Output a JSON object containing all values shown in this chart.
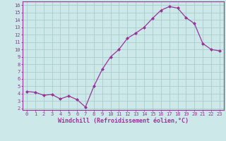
{
  "x": [
    0,
    1,
    2,
    3,
    4,
    5,
    6,
    7,
    8,
    9,
    10,
    11,
    12,
    13,
    14,
    15,
    16,
    17,
    18,
    19,
    20,
    21,
    22,
    23
  ],
  "y": [
    4.3,
    4.2,
    3.8,
    3.9,
    3.3,
    3.7,
    3.2,
    2.2,
    5.0,
    7.3,
    9.0,
    10.0,
    11.5,
    12.2,
    13.0,
    14.2,
    15.3,
    15.8,
    15.6,
    14.3,
    13.5,
    10.8,
    10.0,
    9.8
  ],
  "line_color": "#993399",
  "marker": "D",
  "marker_size": 2.0,
  "bg_color": "#cce8e8",
  "grid_color": "#aacccc",
  "xlabel": "Windchill (Refroidissement éolien,°C)",
  "ylabel_ticks": [
    2,
    3,
    4,
    5,
    6,
    7,
    8,
    9,
    10,
    11,
    12,
    13,
    14,
    15,
    16
  ],
  "xlim": [
    -0.5,
    23.5
  ],
  "ylim": [
    1.8,
    16.5
  ],
  "label_color": "#993399",
  "tick_color": "#993399",
  "border_color": "#993399",
  "tick_fontsize": 5.0,
  "xlabel_fontsize": 6.0
}
